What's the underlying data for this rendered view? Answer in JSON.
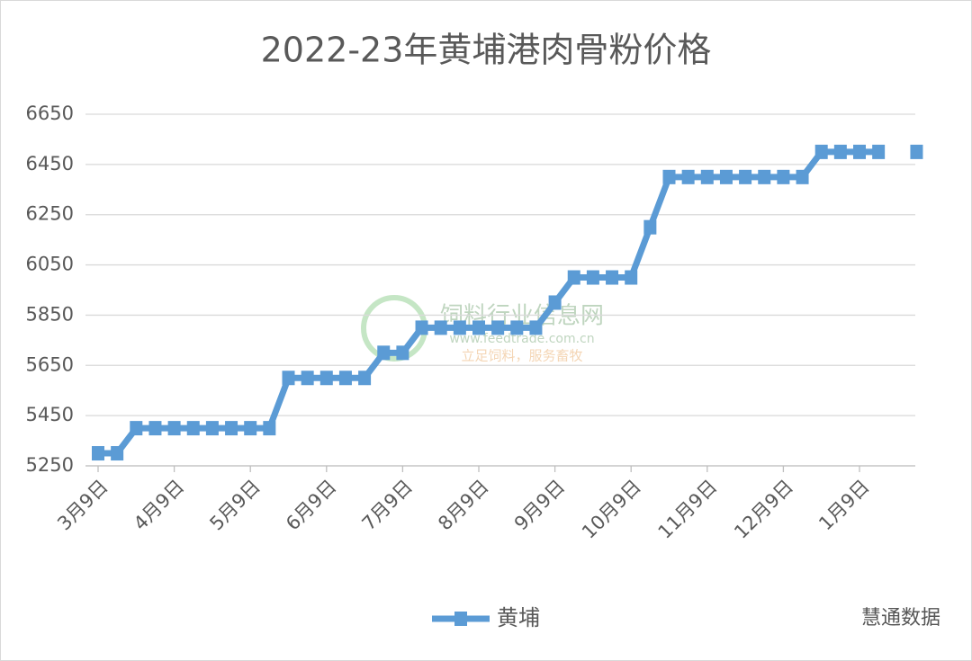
{
  "chart_data": {
    "type": "line",
    "title": "2022-23年黄埔港肉骨粉价格",
    "categories": [
      "3月9日",
      null,
      null,
      null,
      "4月9日",
      null,
      null,
      null,
      "5月9日",
      null,
      null,
      null,
      "6月9日",
      null,
      null,
      null,
      "7月9日",
      null,
      null,
      null,
      "8月9日",
      null,
      null,
      null,
      "9月9日",
      null,
      null,
      null,
      "10月9日",
      null,
      null,
      null,
      "11月9日",
      null,
      null,
      null,
      "12月9日",
      null,
      null,
      null,
      "1月9日",
      null,
      null,
      null
    ],
    "series": [
      {
        "name": "黄埔",
        "color": "#5b9bd5",
        "values": [
          5300,
          5300,
          5400,
          5400,
          5400,
          5400,
          5400,
          5400,
          5400,
          5400,
          5600,
          5600,
          5600,
          5600,
          5600,
          5700,
          5700,
          5800,
          5800,
          5800,
          5800,
          5800,
          5800,
          5800,
          5900,
          6000,
          6000,
          6000,
          6000,
          6200,
          6400,
          6400,
          6400,
          6400,
          6400,
          6400,
          6400,
          6400,
          6500,
          6500,
          6500,
          6500,
          null,
          6500
        ]
      }
    ],
    "ylim": [
      5250,
      6650
    ],
    "yticks": [
      5250,
      5450,
      5650,
      5850,
      6050,
      6250,
      6450,
      6650
    ],
    "grid": true,
    "legend": "bottom",
    "watermarks": [
      "饲料行业信息网",
      "www.feedtrade.com.cn",
      "立足饲料，服务畜牧",
      "慧通数据"
    ]
  }
}
